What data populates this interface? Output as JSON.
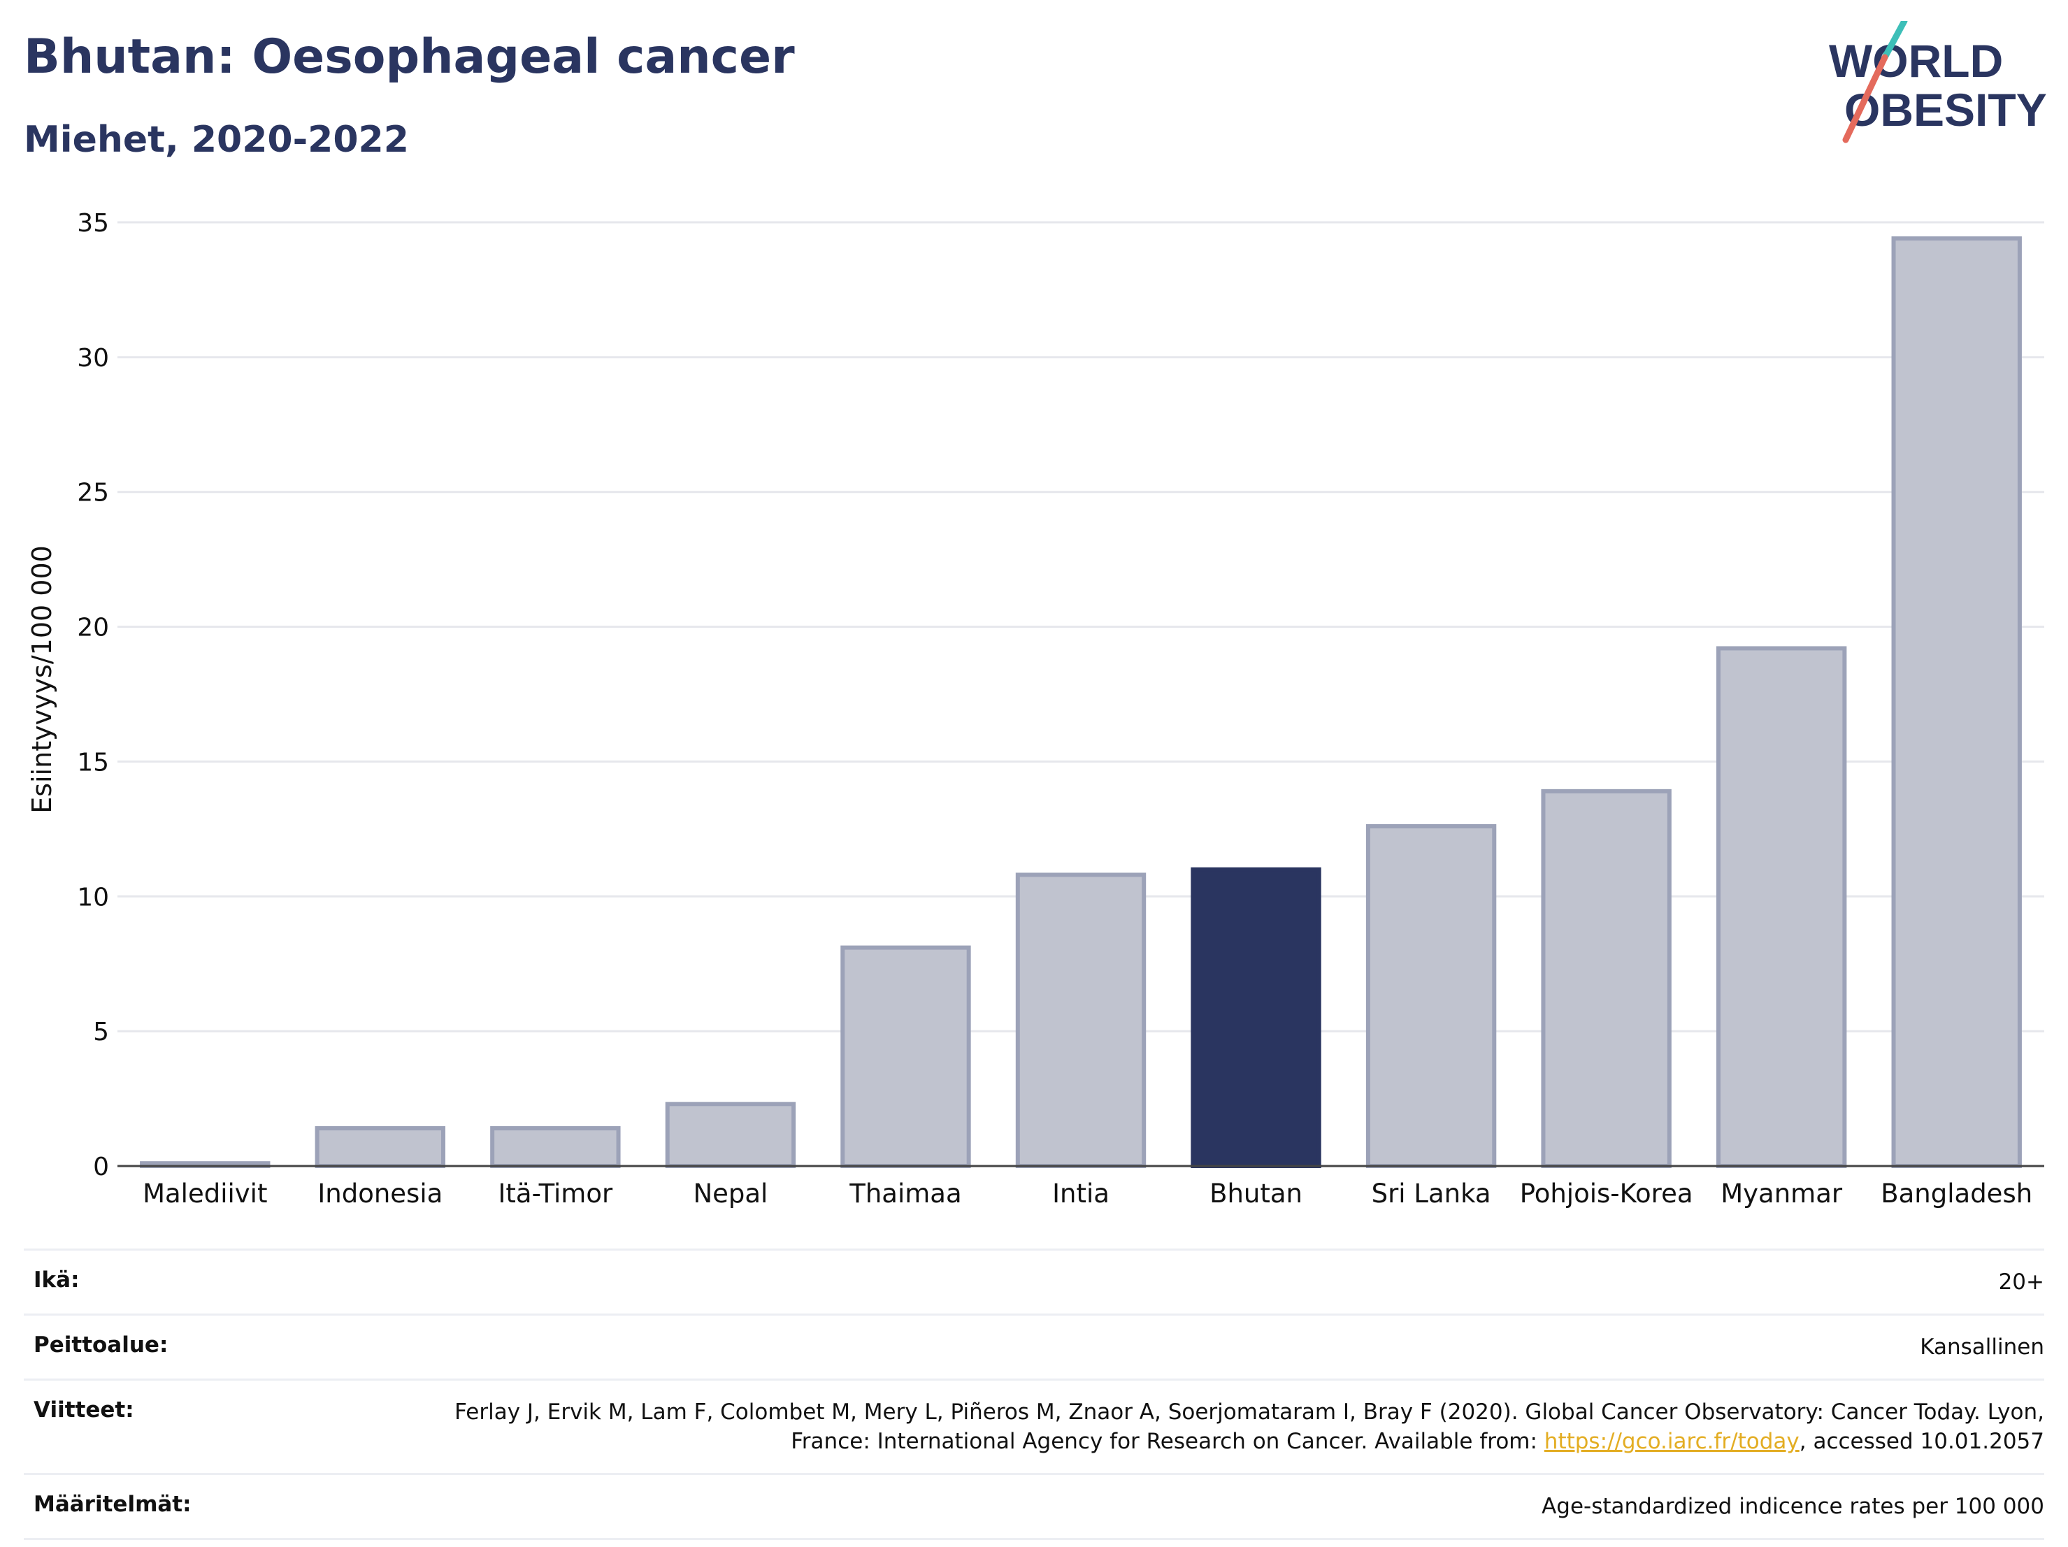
{
  "header": {
    "title": "Bhutan: Oesophageal cancer",
    "subtitle": "Miehet, 2020-2022"
  },
  "logo": {
    "line1": "WORLD",
    "line2": "OBESITY"
  },
  "colors": {
    "highlight": "#2a3560",
    "bars": "#c0c3cf",
    "bar_border": "#9ca2b8",
    "logo_teal": "#3dbfb8",
    "logo_coral": "#e46a5c"
  },
  "chart_data": {
    "type": "bar",
    "categories": [
      "Malediivit",
      "Indonesia",
      "Itä-Timor",
      "Nepal",
      "Thaimaa",
      "Intia",
      "Bhutan",
      "Sri Lanka",
      "Pohjois-Korea",
      "Myanmar",
      "Bangladesh"
    ],
    "values": [
      0.1,
      1.4,
      1.4,
      2.3,
      8.1,
      10.8,
      11.0,
      12.6,
      13.9,
      19.2,
      34.4
    ],
    "highlight": "Bhutan",
    "ylabel": "Esiintyvyys/100 000",
    "xlabel": "",
    "ylim": [
      0,
      35
    ],
    "yticks": [
      0,
      5,
      10,
      15,
      20,
      25,
      30,
      35
    ],
    "grid": true
  },
  "meta": {
    "rows": [
      {
        "key": "Ikä:",
        "value": "20+"
      },
      {
        "key": "Peittoalue:",
        "value": "Kansallinen"
      },
      {
        "key": "Viitteet:",
        "value_before": "Ferlay J, Ervik M, Lam F, Colombet M, Mery L, Piñeros M, Znaor A, Soerjomataram I, Bray F (2020). Global Cancer Observatory: Cancer Today. Lyon, France: International Agency for Research on Cancer. Available from: ",
        "link": "https://gco.iarc.fr/today",
        "value_after": ", accessed 10.01.2057"
      },
      {
        "key": "Määritelmät:",
        "value": "Age-standardized indicence rates per 100 000"
      }
    ]
  }
}
